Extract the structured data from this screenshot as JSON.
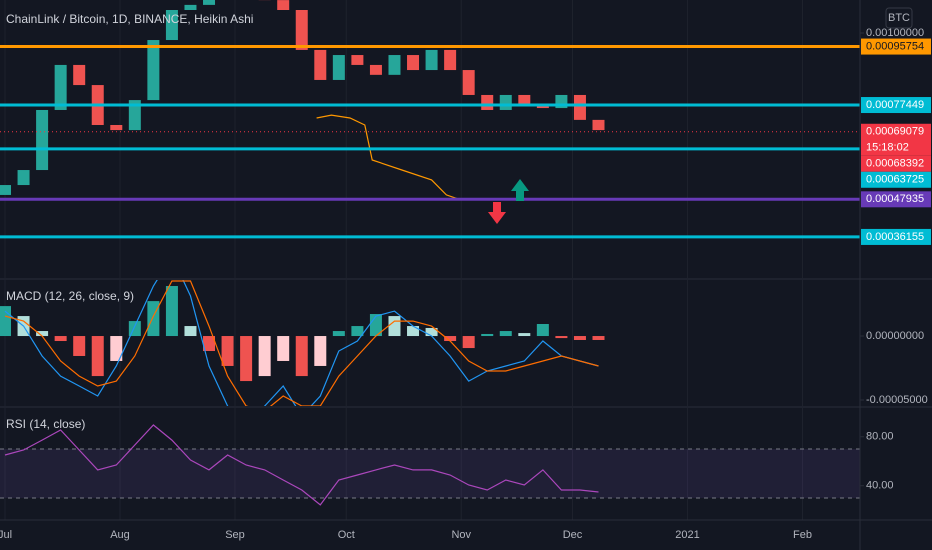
{
  "chart_data": [
    {
      "type": "candlestick",
      "title": "ChainLink / Bitcoin, 1D, BINANCE, Heikin Ashi",
      "currency": "BTC",
      "x": [
        0,
        5,
        10,
        15,
        20,
        25,
        30,
        35,
        40,
        45,
        50,
        55,
        60,
        65,
        70,
        75,
        80,
        85,
        90,
        95,
        100,
        105,
        110,
        115,
        120,
        125,
        130,
        135,
        140,
        145,
        150,
        155,
        160
      ],
      "open": [
        0.000493,
        0.000524,
        0.000571,
        0.000759,
        0.0009,
        0.000837,
        0.000712,
        0.000696,
        0.00079,
        0.000978,
        0.001072,
        0.001088,
        0.001119,
        0.001135,
        0.001119,
        0.001103,
        0.001072,
        0.000947,
        0.000853,
        0.000931,
        0.0009,
        0.000869,
        0.000931,
        0.000884,
        0.000947,
        0.000884,
        0.000806,
        0.000759,
        0.000806,
        0.000775,
        0.000765,
        0.000806,
        0.000728
      ],
      "close": [
        0.000524,
        0.000571,
        0.000759,
        0.0009,
        0.000837,
        0.000712,
        0.000696,
        0.00079,
        0.000978,
        0.001072,
        0.001088,
        0.001119,
        0.001135,
        0.001119,
        0.001103,
        0.001072,
        0.000947,
        0.000853,
        0.000931,
        0.0009,
        0.000869,
        0.000931,
        0.000884,
        0.000947,
        0.000884,
        0.000806,
        0.000759,
        0.000806,
        0.000775,
        0.000765,
        0.000806,
        0.000728,
        0.000696
      ],
      "up_color": "#26a69a",
      "down_color": "#ef5350",
      "indicator": {
        "color": "#ff9800",
        "x": [
          84,
          88,
          93,
          97,
          99,
          107,
          115,
          119,
          123
        ],
        "values": [
          0.000734,
          0.000743,
          0.000734,
          0.000712,
          0.0006024,
          0.000571,
          0.00054,
          0.000493,
          0.000477
        ]
      },
      "levels": [
        {
          "value": 0.00095754,
          "color": "#ff9800"
        },
        {
          "value": 0.00077449,
          "color": "#00bcd4"
        },
        {
          "value": 0.00063725,
          "color": "#00bcd4"
        },
        {
          "value": 0.00047935,
          "color": "#673ab7"
        },
        {
          "value": 0.00036155,
          "color": "#00bcd4"
        }
      ],
      "last_price": {
        "value": 0.00069079,
        "countdown": "15:18:02",
        "color": "#f23645"
      },
      "marker_price": {
        "value": 0.00068392,
        "color": "#f23645"
      },
      "xlim": [
        -1.35,
        230.5
      ],
      "ylim": [
        0.000233,
        0.0011033
      ],
      "yticks": [
        {
          "value": 0.001,
          "label": "0.00100000"
        }
      ]
    },
    {
      "type": "macd",
      "title": "MACD (12, 26, close, 9)",
      "x": [
        0,
        5,
        10,
        15,
        20,
        25,
        30,
        35,
        40,
        45,
        50,
        55,
        60,
        65,
        70,
        75,
        80,
        85,
        90,
        95,
        100,
        105,
        110,
        115,
        120,
        125,
        130,
        135,
        140,
        145,
        150,
        155,
        160
      ],
      "histogram": [
        2.34e-05,
        1.56e-05,
        3.9e-06,
        -3.9e-06,
        -1.56e-05,
        -3.13e-05,
        -1.95e-05,
        1.17e-05,
        2.73e-05,
        3.91e-05,
        7.8e-06,
        -1.17e-05,
        -2.34e-05,
        -3.52e-05,
        -3.13e-05,
        -1.95e-05,
        -3.13e-05,
        -2.34e-05,
        3.9e-06,
        7.8e-06,
        1.72e-05,
        1.56e-05,
        7.8e-06,
        6.3e-06,
        -3.9e-06,
        -9.4e-06,
        1.6e-06,
        3.9e-06,
        2.3e-06,
        9.4e-06,
        -1.6e-06,
        -3.1e-06,
        -3.1e-06
      ],
      "colors": {
        "up": "#26a69a",
        "up_fading": "#b2dfdb",
        "down": "#ef5350",
        "down_fading": "#ffcdd2"
      },
      "series": [
        {
          "color": "#2196f3",
          "values": [
            1.95e-05,
            7.8e-06,
            -1.56e-05,
            -3.13e-05,
            -3.91e-05,
            -4.69e-05,
            -2.34e-05,
            7.8e-06,
            3.91e-05,
            6.25e-05,
            3.13e-05,
            -2.34e-05,
            -5.47e-05,
            -7.03e-05,
            -5.47e-05,
            -3.91e-05,
            -6.25e-05,
            -4.69e-05,
            -1.17e-05,
            -3.9e-06,
            1.56e-05,
            1.95e-05,
            7.8e-06,
            0,
            -1.56e-05,
            -3.52e-05,
            -2.73e-05,
            -2.34e-05,
            -1.95e-05,
            -3.9e-06,
            -1.56e-05,
            -1.95e-05,
            -2.34e-05
          ]
        },
        {
          "color": "#ff6d00",
          "values": [
            1.56e-05,
            1.17e-05,
            0,
            -1.95e-05,
            -3.13e-05,
            -3.91e-05,
            -3.52e-05,
            -1.56e-05,
            1.56e-05,
            4.3e-05,
            4.3e-05,
            7.8e-06,
            -3.13e-05,
            -5.47e-05,
            -5.86e-05,
            -4.69e-05,
            -5.47e-05,
            -5.47e-05,
            -3.13e-05,
            -1.56e-05,
            0,
            1.17e-05,
            1.17e-05,
            7.8e-06,
            -3.9e-06,
            -1.95e-05,
            -2.73e-05,
            -2.73e-05,
            -2.34e-05,
            -1.95e-05,
            -1.56e-05,
            -1.95e-05,
            -2.34e-05
          ]
        }
      ],
      "xlim": [
        -1.35,
        230.5
      ],
      "ylim": [
        -5.47e-05,
        4.38e-05
      ],
      "yticks": [
        {
          "value": 0,
          "label": "0.00000000"
        },
        {
          "value": -5e-05,
          "label": "-0.00005000"
        }
      ]
    },
    {
      "type": "rsi",
      "title": "RSI (14, close)",
      "x": [
        0,
        5,
        10,
        15,
        20,
        25,
        30,
        35,
        40,
        45,
        50,
        55,
        60,
        65,
        70,
        75,
        80,
        85,
        90,
        95,
        100,
        105,
        110,
        115,
        120,
        125,
        130,
        135,
        140,
        145,
        150,
        155,
        160
      ],
      "values": [
        65.1,
        69.2,
        77.3,
        85.5,
        69.2,
        52.9,
        56.9,
        73.3,
        89.6,
        77.3,
        61,
        52.9,
        65.1,
        56.9,
        52.9,
        44.7,
        36.5,
        24.3,
        44.7,
        48.8,
        52.9,
        56.9,
        52.9,
        52.9,
        48.8,
        40.6,
        36.5,
        44.7,
        40.6,
        52.9,
        36.5,
        36.5,
        34.9
      ],
      "color": "#ab47bc",
      "bands": [
        70,
        30
      ],
      "band_fill": "rgba(126,87,194,0.13)",
      "xlim": [
        -1.35,
        230.5
      ],
      "ylim": [
        12,
        103.5
      ],
      "yticks": [
        {
          "value": 80,
          "label": "80.00"
        },
        {
          "value": 40,
          "label": "40.00"
        }
      ],
      "xticks": [
        {
          "value": 0,
          "label": "Jul"
        },
        {
          "value": 31,
          "label": "Aug"
        },
        {
          "value": 62,
          "label": "Sep"
        },
        {
          "value": 92,
          "label": "Oct"
        },
        {
          "value": 123,
          "label": "Nov"
        },
        {
          "value": 153,
          "label": "Dec"
        },
        {
          "value": 184,
          "label": "2021"
        },
        {
          "value": 215,
          "label": "Feb"
        }
      ]
    }
  ]
}
